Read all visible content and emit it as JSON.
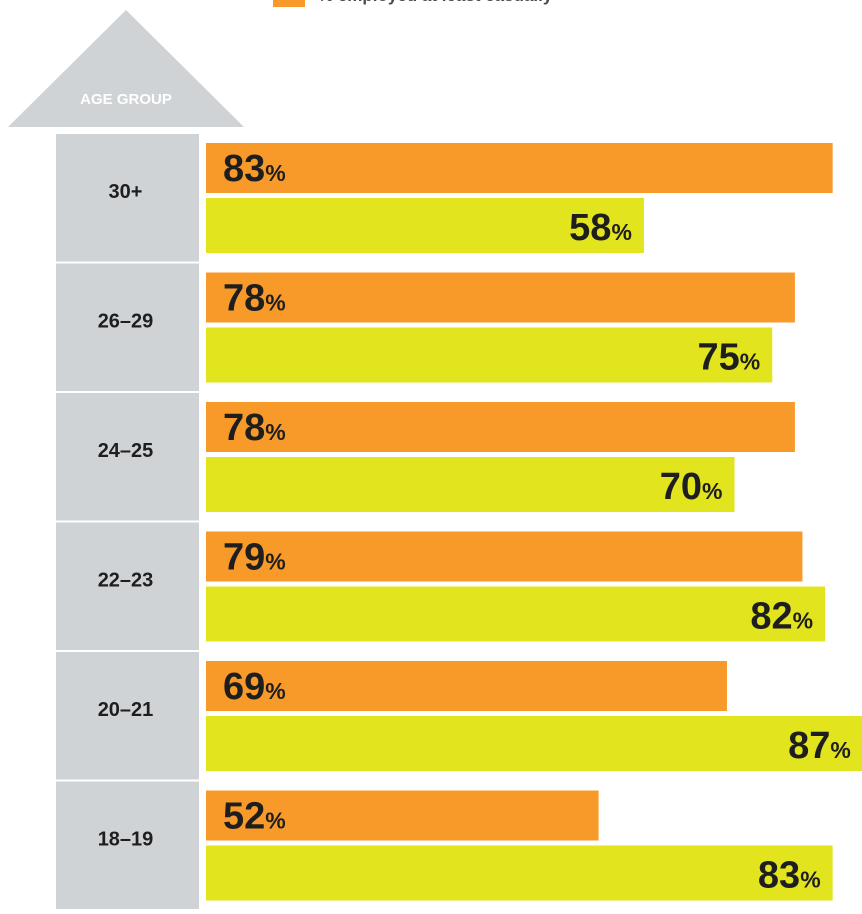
{
  "chart_data": {
    "type": "bar",
    "orientation": "horizontal",
    "legend": [
      {
        "label": "% employed at least casually",
        "color": "#f89a2a"
      }
    ],
    "axis_header": "AGE GROUP",
    "categories": [
      "30+",
      "26–29",
      "24–25",
      "22–23",
      "20–21",
      "18–19"
    ],
    "series": [
      {
        "name": "% employed at least casually",
        "color": "#f89a2a",
        "values": [
          83,
          78,
          78,
          79,
          69,
          52
        ]
      },
      {
        "color": "#e2e41d",
        "values": [
          58,
          75,
          70,
          82,
          87,
          83
        ]
      }
    ],
    "value_suffix": "%",
    "xlim": [
      0,
      100
    ],
    "grid": false
  },
  "colors": {
    "category_panel": "#cfd3d6",
    "label_text": "#1e1e1e",
    "header_text": "#ffffff"
  }
}
